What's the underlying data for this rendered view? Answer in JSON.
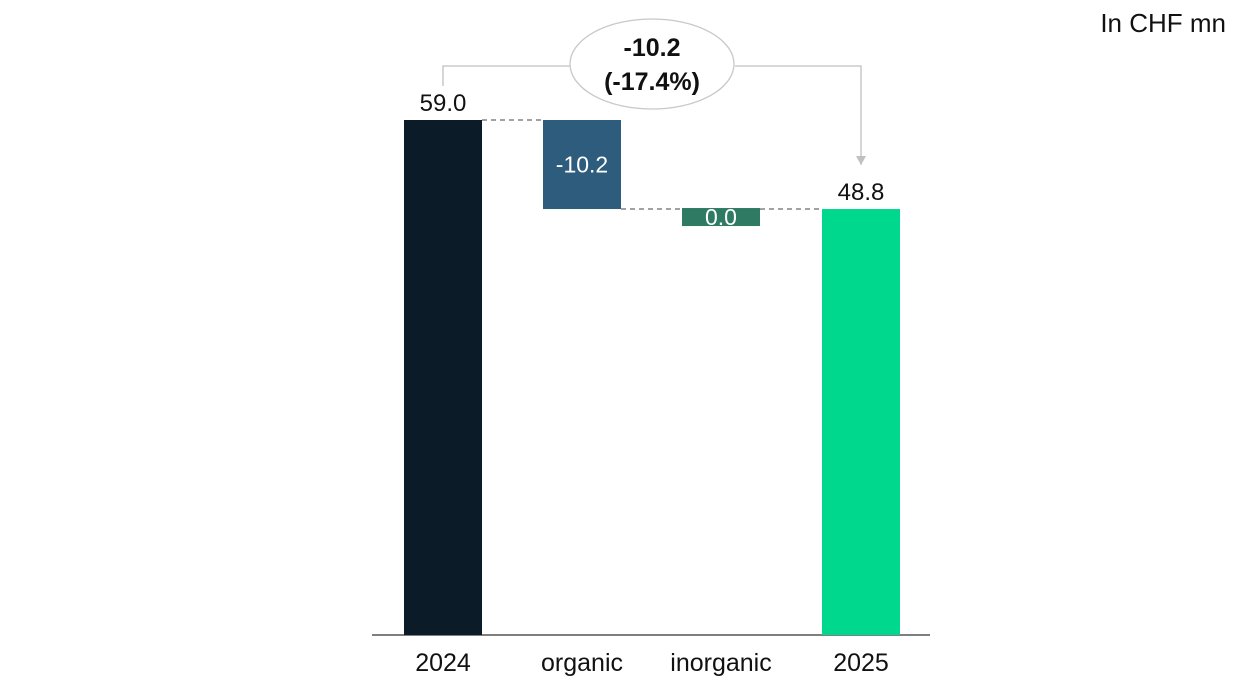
{
  "unit_label": "In CHF mn",
  "chart_data": {
    "type": "waterfall",
    "categories": [
      "2024",
      "organic",
      "inorganic",
      "2025"
    ],
    "values": [
      59.0,
      -10.2,
      0.0,
      48.8
    ],
    "kinds": [
      "total",
      "delta",
      "delta",
      "total"
    ],
    "labels": [
      "59.0",
      "-10.2",
      "0.0",
      "48.8"
    ],
    "colors": [
      "#0b1c28",
      "#2e5c7c",
      "#2e7a63",
      "#00d88d"
    ],
    "change": {
      "line1": "-10.2",
      "line2": "(-17.4%)"
    },
    "ylim": [
      0,
      59.0
    ],
    "grid": false,
    "legend": "none"
  }
}
